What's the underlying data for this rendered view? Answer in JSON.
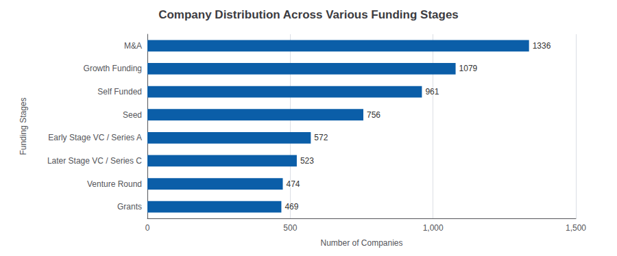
{
  "chart_data": {
    "type": "bar",
    "orientation": "horizontal",
    "title": "Company Distribution Across Various Funding Stages",
    "categories": [
      "Grants",
      "Venture Round",
      "Later Stage VC / Series C",
      "Early Stage VC / Series A",
      "Seed",
      "Self Funded",
      "Growth Funding",
      "M&A"
    ],
    "values": [
      469,
      474,
      523,
      572,
      756,
      961,
      1079,
      1336
    ],
    "color": "#0b5ea8",
    "xlabel": "Number of Companies",
    "ylabel": "Funding Stages",
    "xlim": [
      0,
      1500
    ],
    "xticks": [
      0,
      500,
      1000,
      1500
    ],
    "grid": true,
    "data_labels": true
  }
}
